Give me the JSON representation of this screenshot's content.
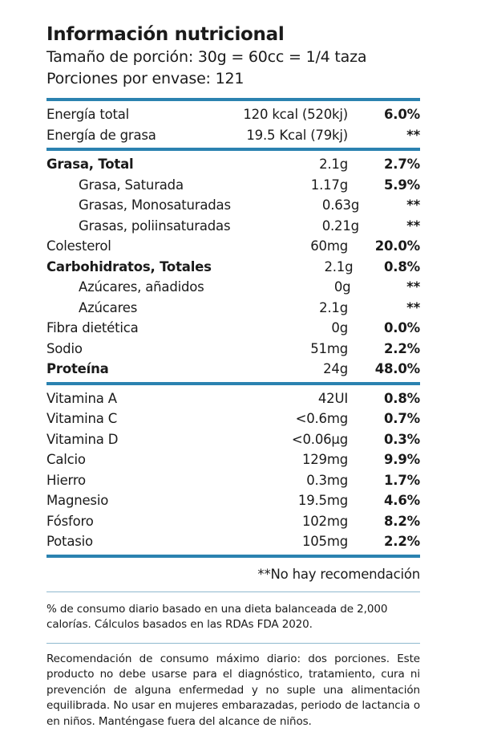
{
  "header": {
    "title": "Información nutricional",
    "serving_size": "Tamaño de porción: 30g = 60cc = 1/4 taza",
    "servings": "Porciones por envase: 121"
  },
  "energy": [
    {
      "name": "Energía total",
      "amount": "120 kcal (520kj)",
      "pct": "6.0%"
    },
    {
      "name": "Energía de grasa",
      "amount": "19.5 Kcal (79kj)",
      "pct": "**"
    }
  ],
  "nutrients": [
    {
      "name": "Grasa, Total",
      "amount": "2.1g",
      "pct": "2.7%",
      "bold": true
    },
    {
      "name": "Grasa, Saturada",
      "amount": "1.17g",
      "pct": "5.9%",
      "sub": true
    },
    {
      "name": "Grasas, Monosaturadas",
      "amount": "0.63g",
      "pct": "**",
      "sub": true
    },
    {
      "name": "Grasas, poliinsaturadas",
      "amount": "0.21g",
      "pct": "**",
      "sub": true
    },
    {
      "name": "Colesterol",
      "amount": "60mg",
      "pct": "20.0%"
    },
    {
      "name": "Carbohidratos, Totales",
      "amount": "2.1g",
      "pct": "0.8%",
      "bold": true
    },
    {
      "name": "Azúcares, añadidos",
      "amount": "0g",
      "pct": "**",
      "sub": true
    },
    {
      "name": "Azúcares",
      "amount": "2.1g",
      "pct": "**",
      "sub": true
    },
    {
      "name": "Fibra dietética",
      "amount": "0g",
      "pct": "0.0%"
    },
    {
      "name": "Sodio",
      "amount": "51mg",
      "pct": "2.2%"
    },
    {
      "name": "Proteína",
      "amount": "24g",
      "pct": "48.0%",
      "bold": true
    }
  ],
  "vitamins": [
    {
      "name": "Vitamina A",
      "amount": "42UI",
      "pct": "0.8%"
    },
    {
      "name": "Vitamina C",
      "amount": "<0.6mg",
      "pct": "0.7%"
    },
    {
      "name": "Vitamina D",
      "amount": "<0.06µg",
      "pct": "0.3%"
    },
    {
      "name": "Calcio",
      "amount": "129mg",
      "pct": "9.9%"
    },
    {
      "name": "Hierro",
      "amount": "0.3mg",
      "pct": "1.7%"
    },
    {
      "name": "Magnesio",
      "amount": "19.5mg",
      "pct": "4.6%"
    },
    {
      "name": "Fósforo",
      "amount": "102mg",
      "pct": "8.2%"
    },
    {
      "name": "Potasio",
      "amount": "105mg",
      "pct": "2.2%"
    }
  ],
  "no_recommendation": "**No hay recomendación",
  "footnote": "% de consumo diario basado en una dieta balanceada de 2,000 calorías. Cálculos basados en las RDAs FDA 2020.",
  "warning": "Recomendación de consumo máximo diario: dos porciones. Este producto no debe usarse para el diagnóstico, tratamiento, cura ni prevención de alguna enfermedad y no suple una alimentación equilibrada. No usar en mujeres embarazadas, periodo de lactancia o en niños. Manténgase fuera del alcance de niños.",
  "colors": {
    "accent": "#2b82b0",
    "divider": "#8fb9cf"
  }
}
